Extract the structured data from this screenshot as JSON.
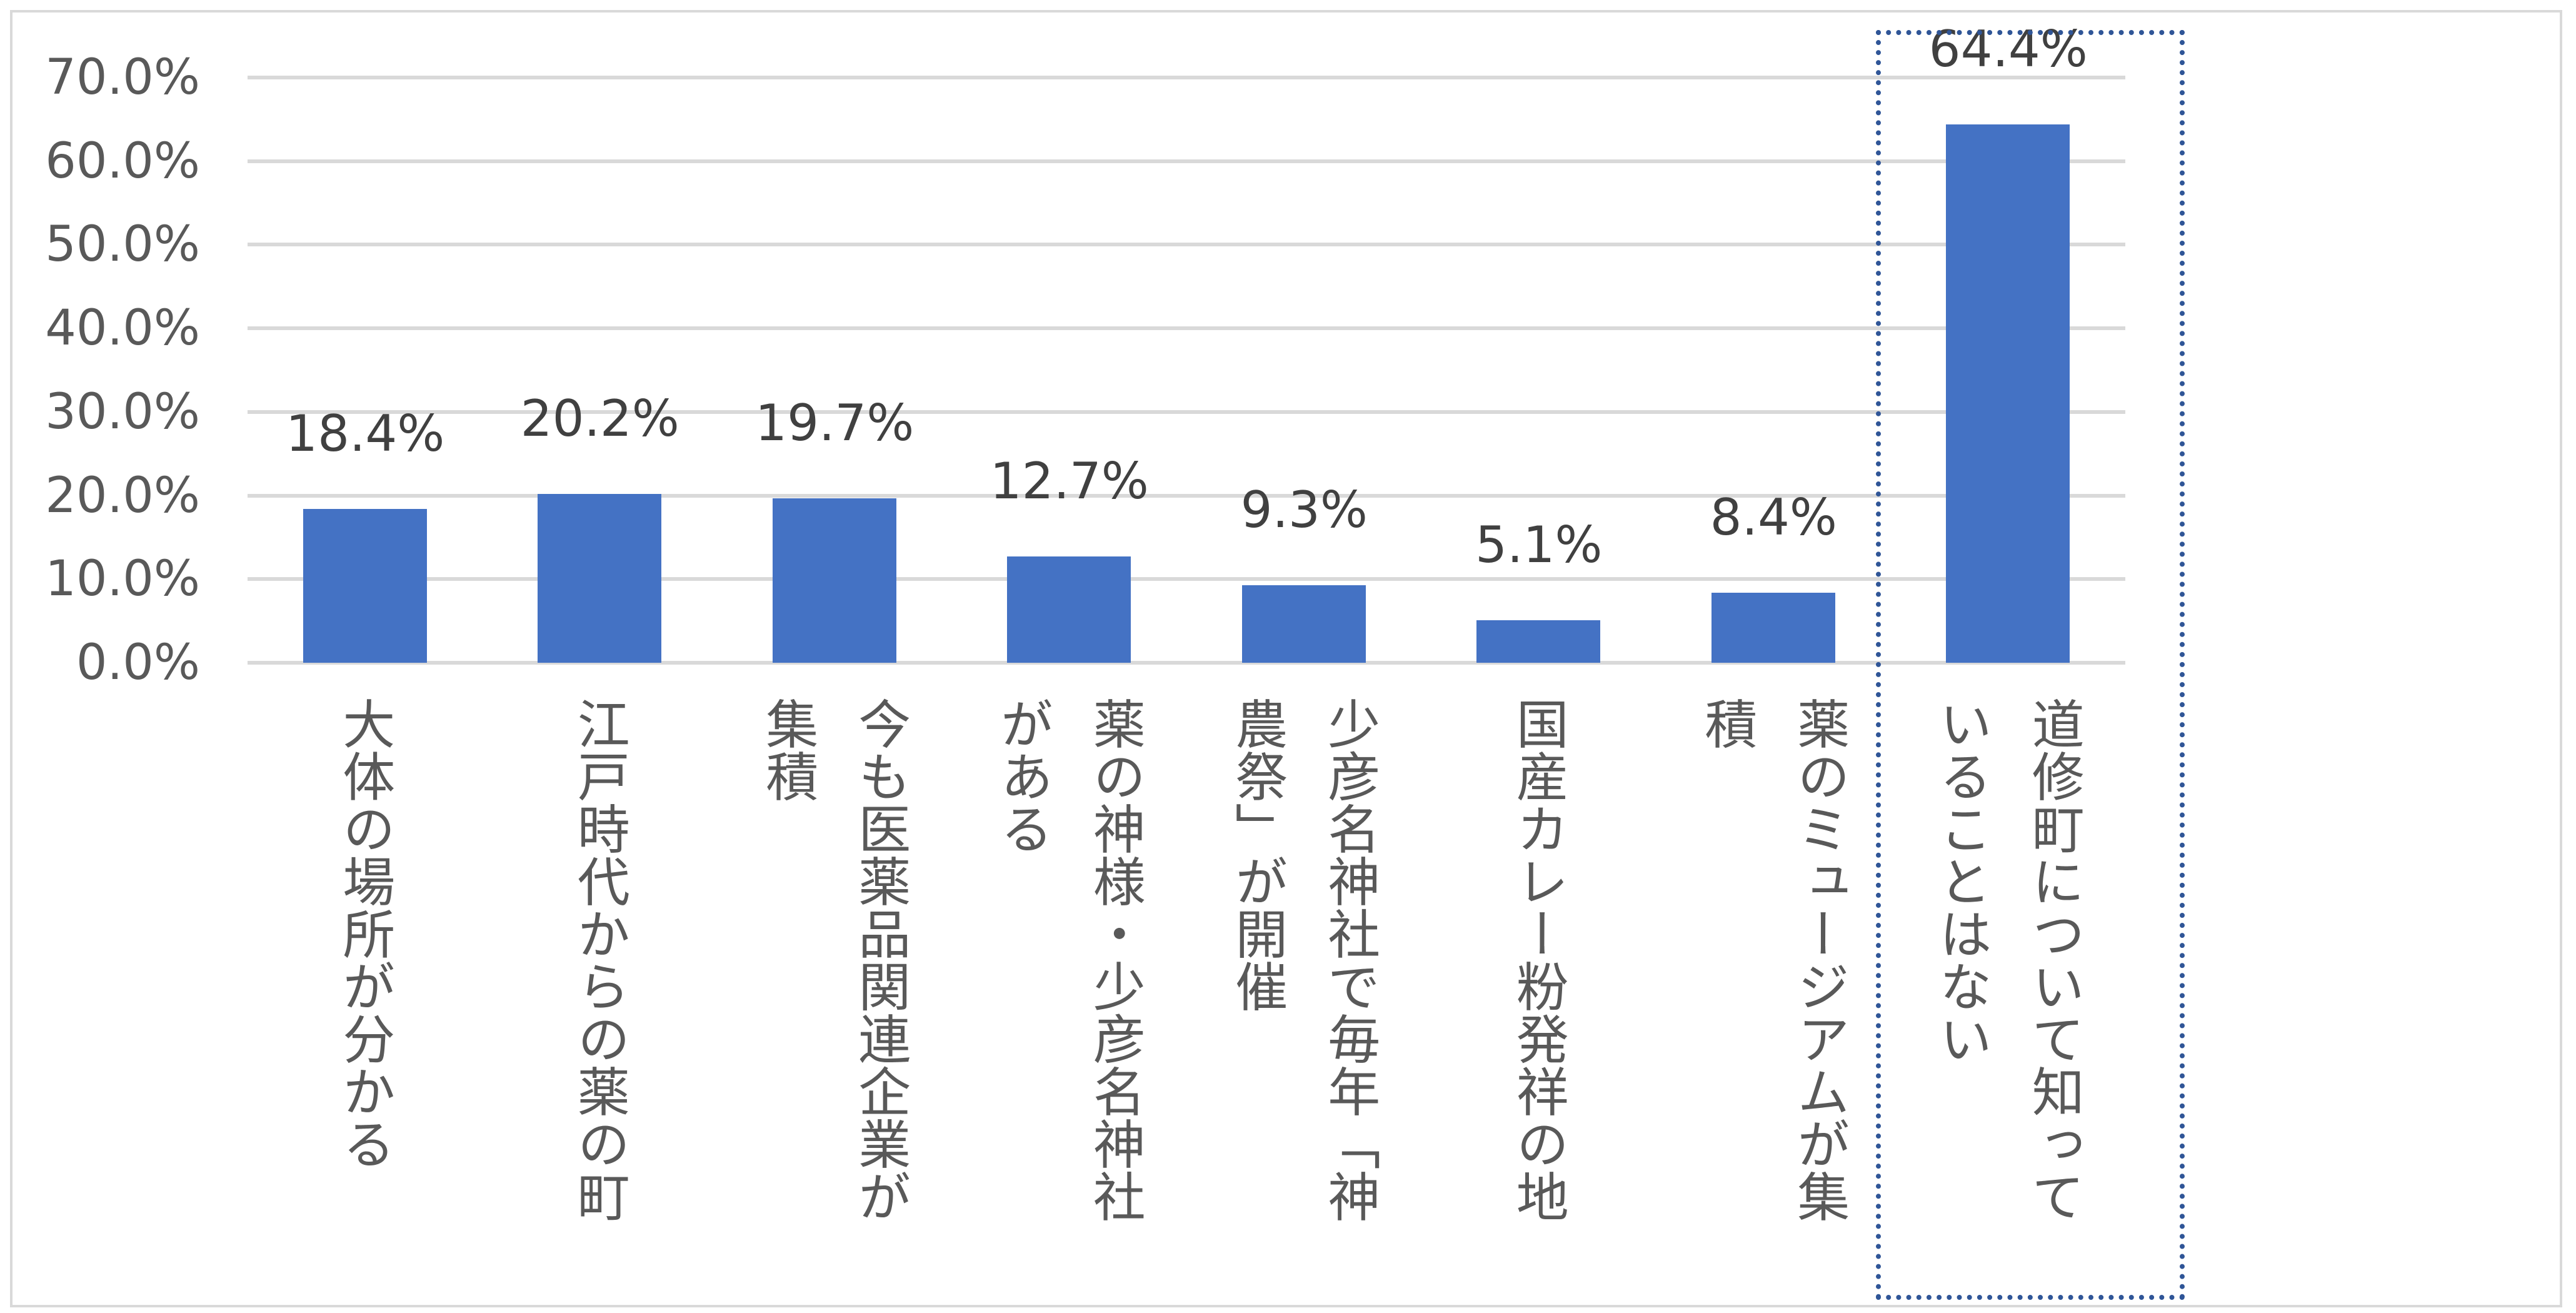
{
  "chart_data": {
    "type": "bar",
    "title": "",
    "xlabel": "",
    "ylabel": "",
    "ylim": [
      0,
      70
    ],
    "yticks": [
      "0.0%",
      "10.0%",
      "20.0%",
      "30.0%",
      "40.0%",
      "50.0%",
      "60.0%",
      "70.0%"
    ],
    "grid": true,
    "bar_color": "#4472C4",
    "highlight_color": "#2F5597",
    "highlighted_category_index": 7,
    "categories": [
      "大体の場所が分かる",
      "江戸時代からの薬の町",
      "今も医薬品関連企業が集積",
      "薬の神様・少彦名神社がある",
      "少彦名神社で毎年「神農祭」が開催",
      "国産カレー粉発祥の地",
      "薬のミュージアムが集積",
      "道修町について知っていることはない"
    ],
    "values": [
      18.4,
      20.2,
      19.7,
      12.7,
      9.3,
      5.1,
      8.4,
      64.4
    ],
    "data_labels": [
      "18.4%",
      "20.2%",
      "19.7%",
      "12.7%",
      "9.3%",
      "5.1%",
      "8.4%",
      "64.4%"
    ]
  }
}
